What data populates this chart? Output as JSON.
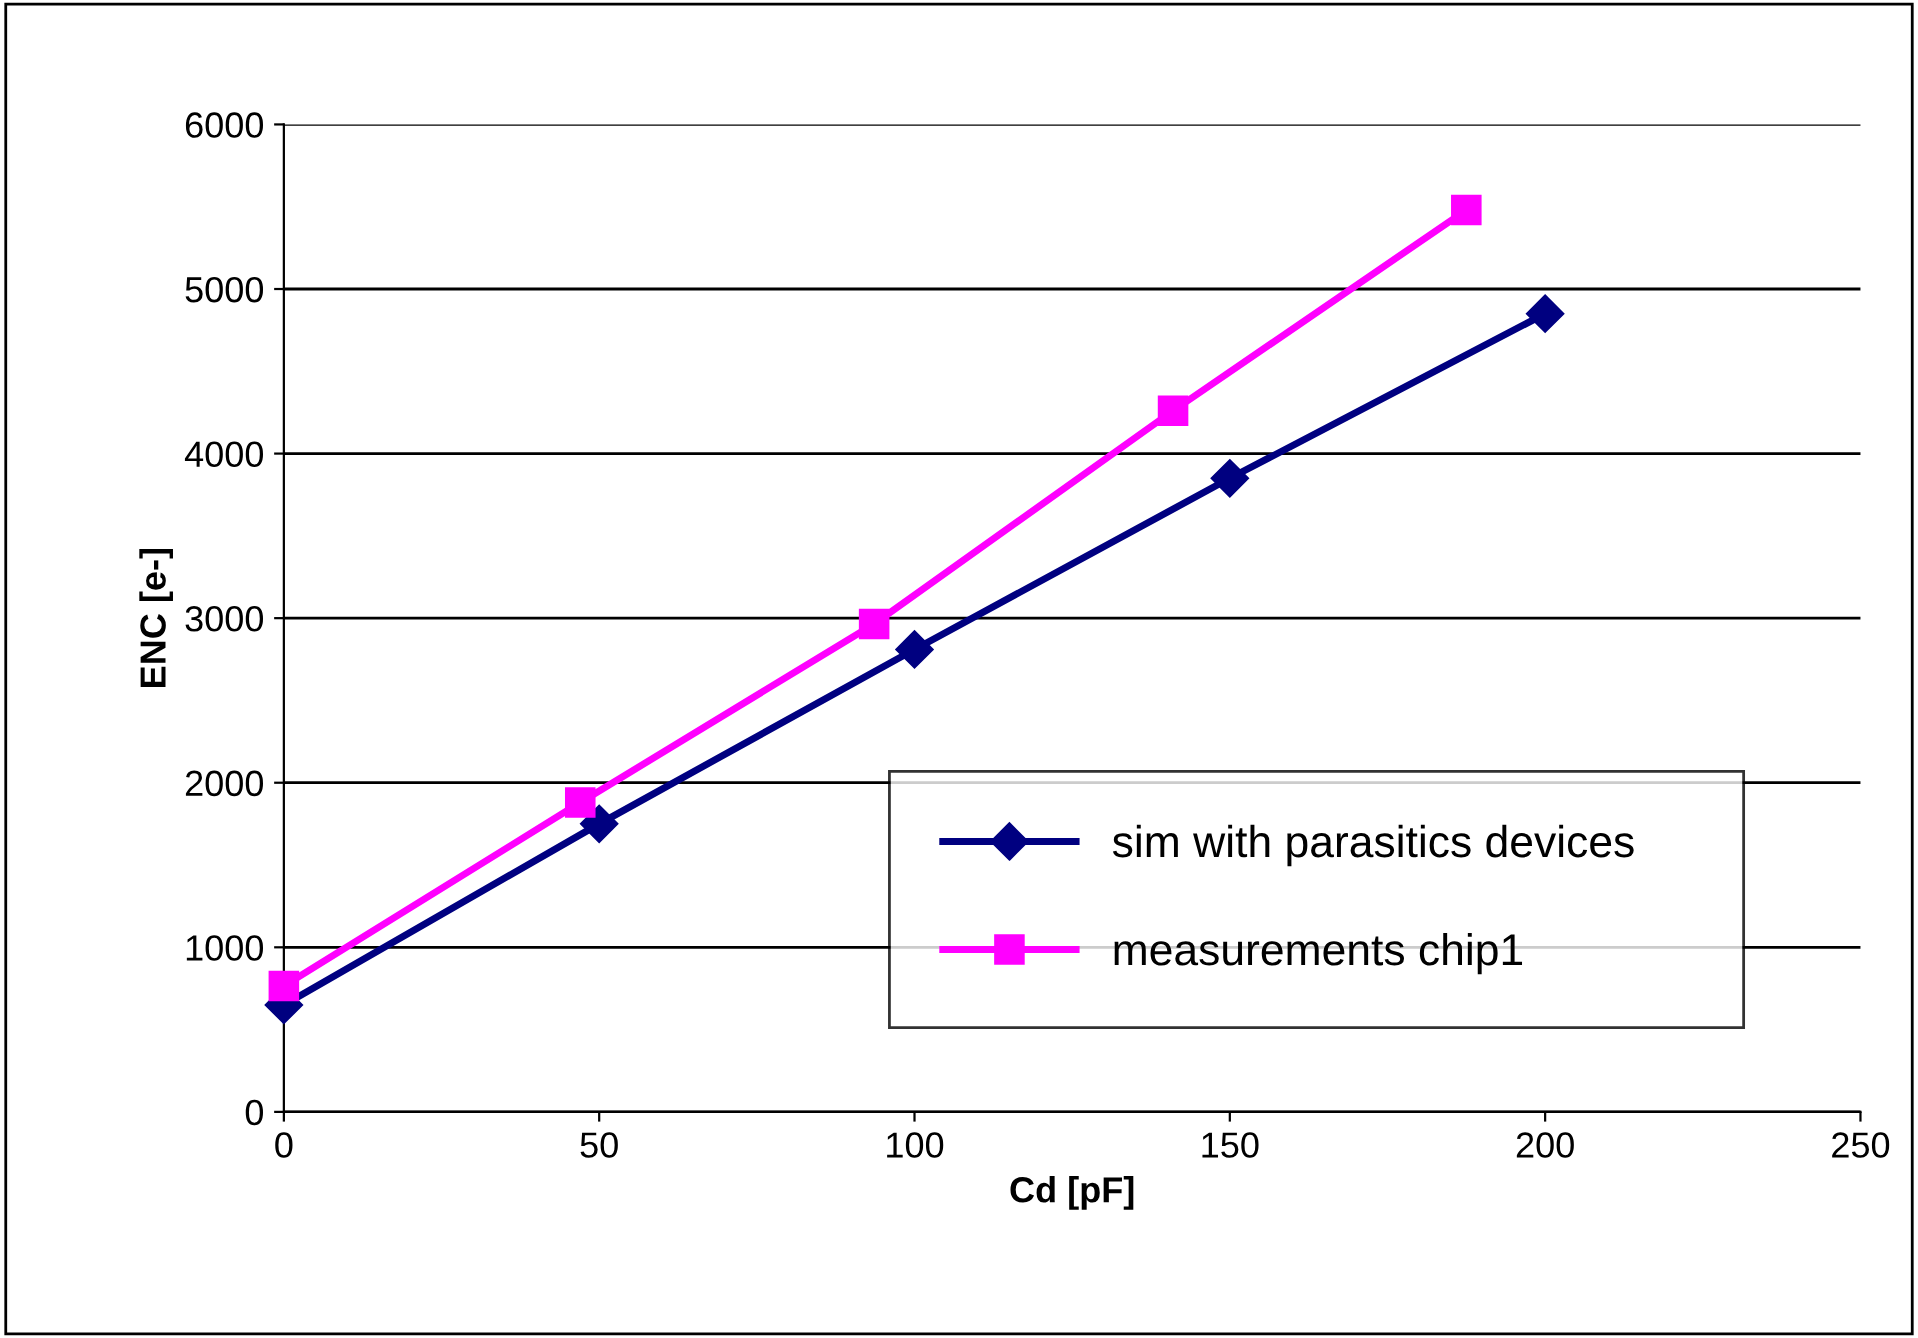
{
  "chart_data": {
    "type": "line",
    "xlabel": "Cd [pF]",
    "ylabel": "ENC [e-]",
    "xlim": [
      0,
      250
    ],
    "xticks": [
      0,
      50,
      100,
      150,
      200,
      250
    ],
    "ylim": [
      0,
      6000
    ],
    "yticks": [
      0,
      1000,
      2000,
      3000,
      4000,
      5000,
      6000
    ],
    "grid": "y",
    "legend": "bottom right",
    "series": [
      {
        "name": "sim with parasitics devices",
        "color": "#000080",
        "marker": "diamond",
        "x": [
          0,
          50,
          100,
          150,
          200
        ],
        "values": [
          650,
          1750,
          2810,
          3850,
          4850
        ]
      },
      {
        "name": "measurements chip1",
        "color": "#ff00ff",
        "marker": "square",
        "x": [
          0,
          47,
          93.6,
          141,
          187.5
        ],
        "values": [
          765,
          1880,
          2965,
          4260,
          5480
        ]
      }
    ]
  }
}
